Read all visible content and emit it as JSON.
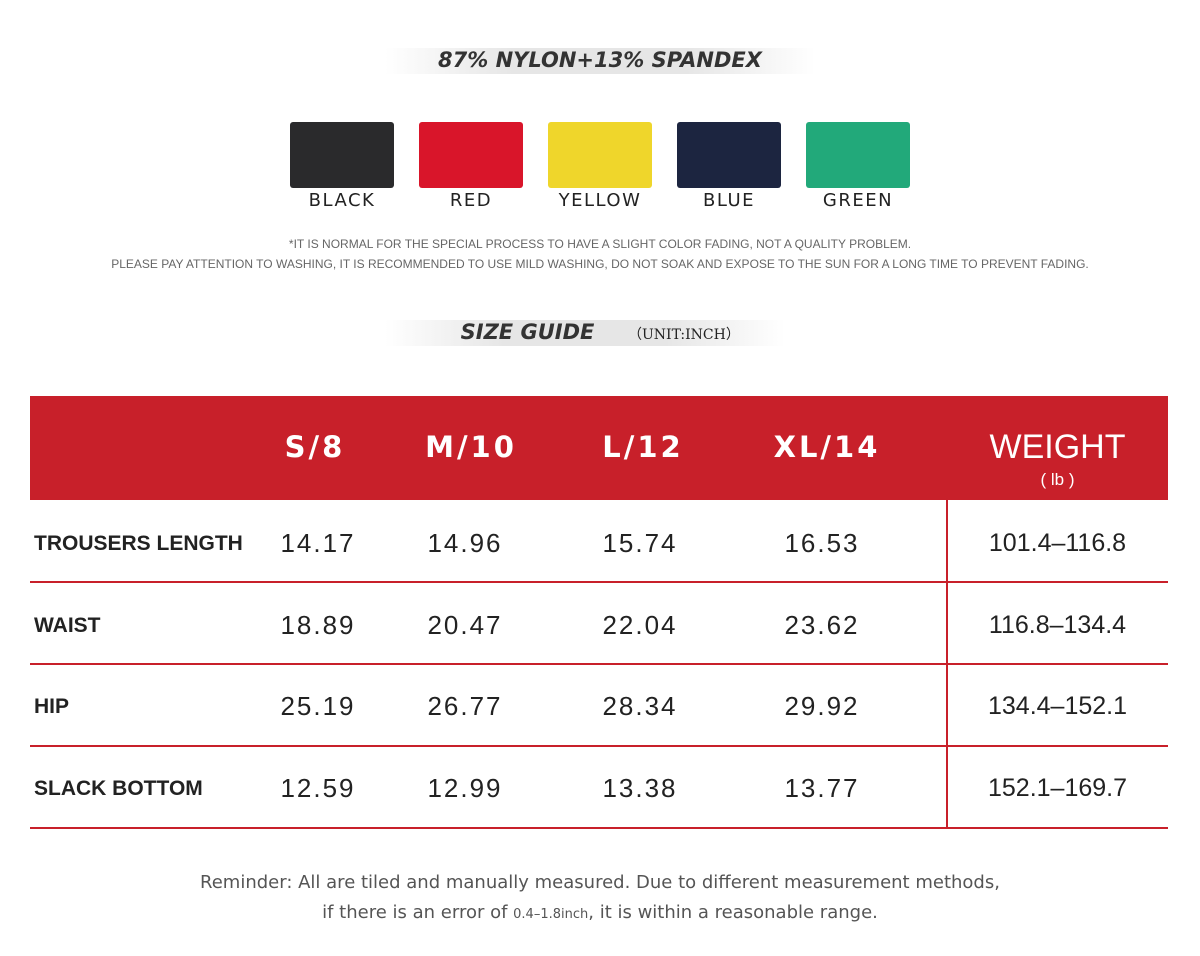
{
  "material": "87% NYLON+13% SPANDEX",
  "colors": [
    "BLACK",
    "RED",
    "YELLOW",
    "BLUE",
    "GREEN"
  ],
  "notes": [
    "*IT IS NORMAL FOR THE SPECIAL PROCESS TO HAVE A SLIGHT COLOR FADING, NOT A QUALITY PROBLEM.",
    "PLEASE PAY ATTENTION TO WASHING, IT IS RECOMMENDED TO USE MILD WASHING, DO NOT SOAK AND EXPOSE TO THE SUN FOR A LONG TIME TO PREVENT FADING."
  ],
  "size_guide": {
    "title": "SIZE GUIDE",
    "unit": "（UNIT:INCH）"
  },
  "table": {
    "sizes": [
      "S/8",
      "M/10",
      "L/12",
      "XL/14"
    ],
    "weight_header": "WEIGHT",
    "weight_unit": "( lb )",
    "rows": [
      {
        "label": "TROUSERS LENGTH",
        "values": [
          "14.17",
          "14.96",
          "15.74",
          "16.53"
        ],
        "weight": "101.4–116.8"
      },
      {
        "label": "WAIST",
        "values": [
          "18.89",
          "20.47",
          "22.04",
          "23.62"
        ],
        "weight": "116.8–134.4"
      },
      {
        "label": "HIP",
        "values": [
          "25.19",
          "26.77",
          "28.34",
          "29.92"
        ],
        "weight": "134.4–152.1"
      },
      {
        "label": "SLACK BOTTOM",
        "values": [
          "12.59",
          "12.99",
          "13.38",
          "13.77"
        ],
        "weight": "152.1–169.7"
      }
    ]
  },
  "reminder": [
    "Reminder: All are tiled and manually measured. Due to different measurement methods,",
    "if there is an error of ",
    "0.4–1.8inch",
    ",  it is within a reasonable range."
  ]
}
